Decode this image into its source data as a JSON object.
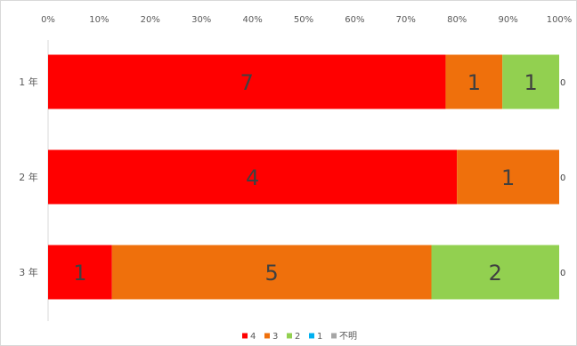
{
  "chart_data": {
    "type": "bar",
    "orientation": "horizontal",
    "stacking": "percent",
    "x_ticks": [
      "0%",
      "10%",
      "20%",
      "30%",
      "40%",
      "50%",
      "60%",
      "70%",
      "80%",
      "90%",
      "100%"
    ],
    "xlim": [
      0,
      100
    ],
    "categories": [
      "1 年",
      "2 年",
      "3 年"
    ],
    "series": [
      {
        "name": "4",
        "color": "#ff0000",
        "values": [
          7,
          4,
          1
        ]
      },
      {
        "name": "3",
        "color": "#ef700c",
        "values": [
          1,
          1,
          5
        ]
      },
      {
        "name": "2",
        "color": "#92d050",
        "values": [
          1,
          0,
          2
        ]
      },
      {
        "name": "1",
        "color": "#00b0f0",
        "values": [
          0,
          0,
          0
        ]
      },
      {
        "name": "不明",
        "color": "#a6a6a6",
        "values": [
          0,
          0,
          0
        ]
      }
    ],
    "end_labels": [
      "0",
      "0",
      "0"
    ],
    "legend_position": "bottom",
    "grid": false
  }
}
